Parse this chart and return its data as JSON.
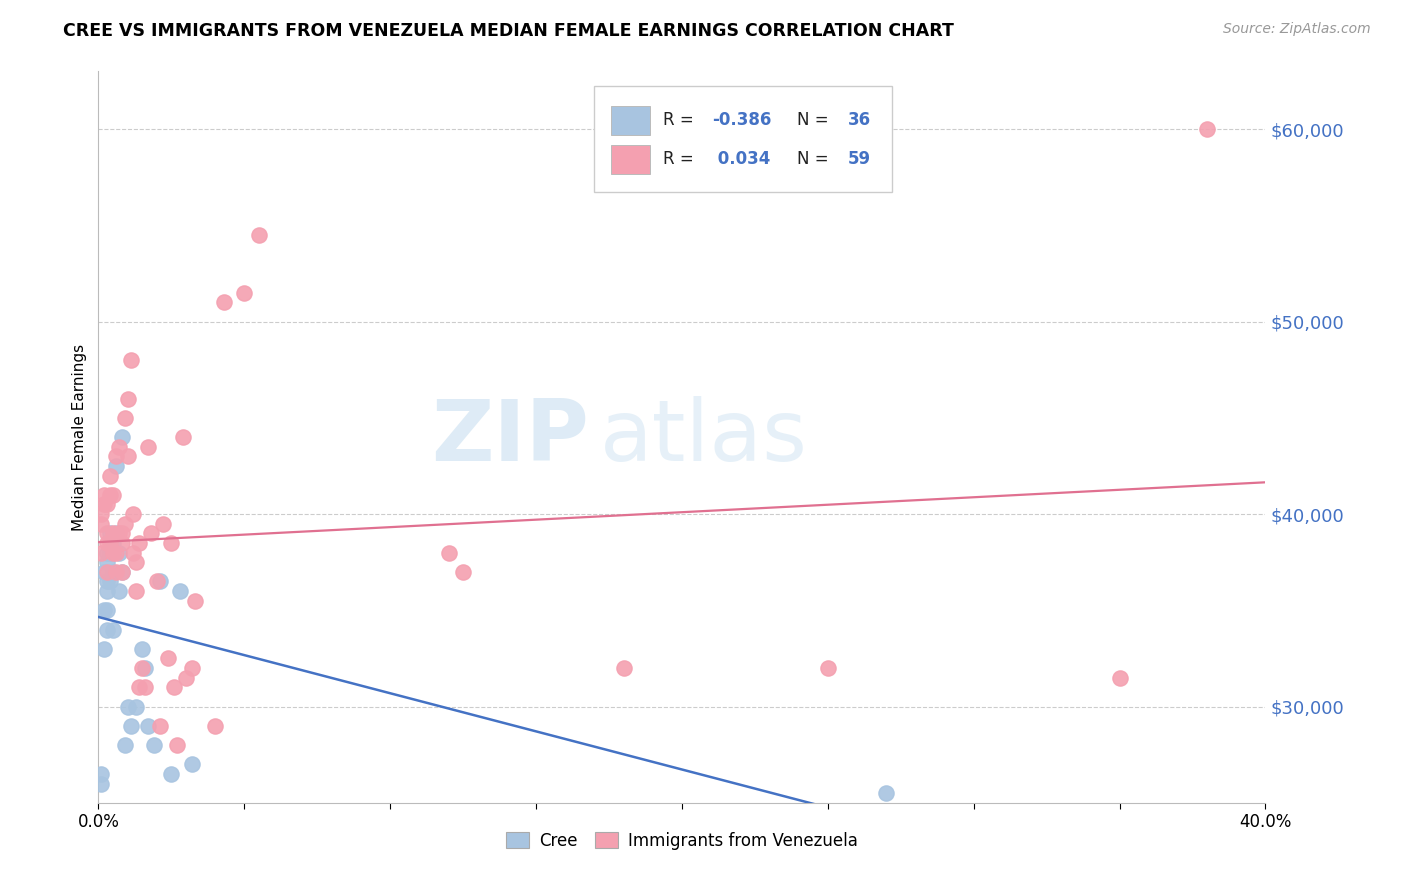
{
  "title": "CREE VS IMMIGRANTS FROM VENEZUELA MEDIAN FEMALE EARNINGS CORRELATION CHART",
  "source": "Source: ZipAtlas.com",
  "ylabel": "Median Female Earnings",
  "x_min": 0.0,
  "x_max": 0.4,
  "y_min": 25000,
  "y_max": 63000,
  "yticks": [
    30000,
    40000,
    50000,
    60000
  ],
  "ytick_labels": [
    "$30,000",
    "$40,000",
    "$50,000",
    "$60,000"
  ],
  "xticks": [
    0.0,
    0.05,
    0.1,
    0.15,
    0.2,
    0.25,
    0.3,
    0.35,
    0.4
  ],
  "xtick_labels": [
    "0.0%",
    "",
    "",
    "",
    "",
    "",
    "",
    "",
    "40.0%"
  ],
  "cree_color": "#a8c4e0",
  "venezuela_color": "#f4a0b0",
  "cree_line_color": "#4472c4",
  "venezuela_line_color": "#e07090",
  "r_cree": "-0.386",
  "n_cree": "36",
  "r_venezuela": "0.034",
  "n_venezuela": "59",
  "watermark_zip": "ZIP",
  "watermark_atlas": "atlas",
  "background_color": "#ffffff",
  "grid_color": "#cccccc",
  "cree_x": [
    0.001,
    0.001,
    0.002,
    0.002,
    0.002,
    0.003,
    0.003,
    0.003,
    0.003,
    0.003,
    0.003,
    0.004,
    0.004,
    0.004,
    0.005,
    0.005,
    0.005,
    0.006,
    0.006,
    0.007,
    0.007,
    0.008,
    0.008,
    0.009,
    0.01,
    0.011,
    0.013,
    0.015,
    0.016,
    0.017,
    0.019,
    0.021,
    0.025,
    0.028,
    0.032,
    0.27
  ],
  "cree_y": [
    26000,
    26500,
    37000,
    35000,
    33000,
    38000,
    37500,
    36500,
    36000,
    35000,
    34000,
    39000,
    38000,
    36500,
    38500,
    37000,
    34000,
    42500,
    39000,
    38000,
    36000,
    44000,
    37000,
    28000,
    30000,
    29000,
    30000,
    33000,
    32000,
    29000,
    28000,
    36500,
    26500,
    36000,
    27000,
    25500
  ],
  "venezuela_x": [
    0.001,
    0.001,
    0.001,
    0.002,
    0.002,
    0.003,
    0.003,
    0.003,
    0.003,
    0.004,
    0.004,
    0.004,
    0.005,
    0.005,
    0.005,
    0.006,
    0.006,
    0.006,
    0.007,
    0.007,
    0.008,
    0.008,
    0.008,
    0.009,
    0.009,
    0.01,
    0.01,
    0.011,
    0.012,
    0.012,
    0.013,
    0.013,
    0.014,
    0.014,
    0.015,
    0.016,
    0.017,
    0.018,
    0.02,
    0.021,
    0.022,
    0.024,
    0.025,
    0.026,
    0.027,
    0.029,
    0.03,
    0.032,
    0.033,
    0.04,
    0.043,
    0.05,
    0.055,
    0.12,
    0.125,
    0.18,
    0.25,
    0.35,
    0.38
  ],
  "venezuela_y": [
    38000,
    39500,
    40000,
    41000,
    40500,
    39000,
    38500,
    40500,
    37000,
    41000,
    42000,
    38500,
    38000,
    41000,
    39000,
    43000,
    38000,
    37000,
    43500,
    39000,
    39000,
    38500,
    37000,
    45000,
    39500,
    46000,
    43000,
    48000,
    40000,
    38000,
    37500,
    36000,
    38500,
    31000,
    32000,
    31000,
    43500,
    39000,
    36500,
    29000,
    39500,
    32500,
    38500,
    31000,
    28000,
    44000,
    31500,
    32000,
    35500,
    29000,
    51000,
    51500,
    54500,
    38000,
    37000,
    32000,
    32000,
    31500,
    60000
  ]
}
